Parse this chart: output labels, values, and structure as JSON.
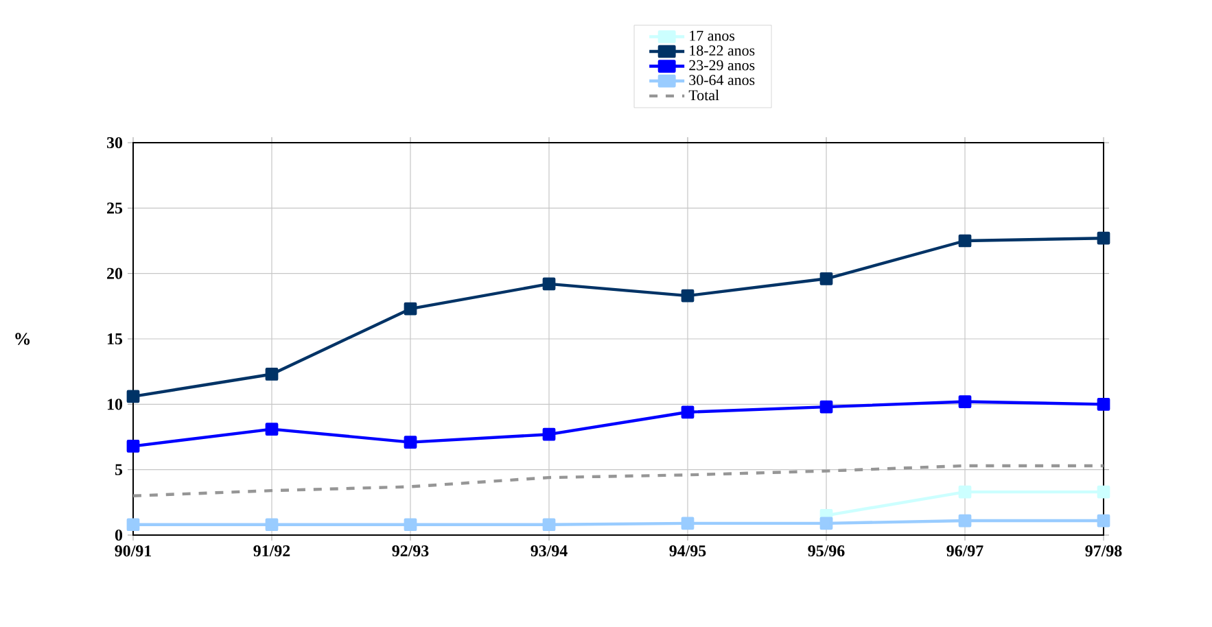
{
  "chart_data": {
    "type": "line",
    "ylabel": "%",
    "categories": [
      "90/91",
      "91/92",
      "92/93",
      "93/94",
      "94/95",
      "95/96",
      "96/97",
      "97/98"
    ],
    "ylim": [
      0,
      30
    ],
    "yticks": [
      0,
      5,
      10,
      15,
      20,
      25,
      30
    ],
    "grid": true,
    "legend": "top",
    "marker": "square",
    "line_style": "solid",
    "series": [
      {
        "name": "17 anos",
        "color": "#ccffff",
        "values": [
          null,
          null,
          null,
          null,
          null,
          1.5,
          3.3,
          3.3
        ]
      },
      {
        "name": "18-22 anos",
        "color": "#003366",
        "values": [
          10.6,
          12.3,
          17.3,
          19.2,
          18.3,
          19.6,
          22.5,
          22.7
        ]
      },
      {
        "name": "23-29 anos",
        "color": "#0000ff",
        "values": [
          6.8,
          8.1,
          7.1,
          7.7,
          9.4,
          9.8,
          10.2,
          10.0
        ]
      },
      {
        "name": "30-64 anos",
        "color": "#99ccff",
        "values": [
          0.8,
          0.8,
          0.8,
          0.8,
          0.9,
          0.9,
          1.1,
          1.1
        ]
      },
      {
        "name": "Total",
        "color": "#969696",
        "marker": "none",
        "line_style": "dashed",
        "values": [
          3.0,
          3.4,
          3.7,
          4.4,
          4.6,
          4.9,
          5.3,
          5.3
        ]
      }
    ]
  }
}
